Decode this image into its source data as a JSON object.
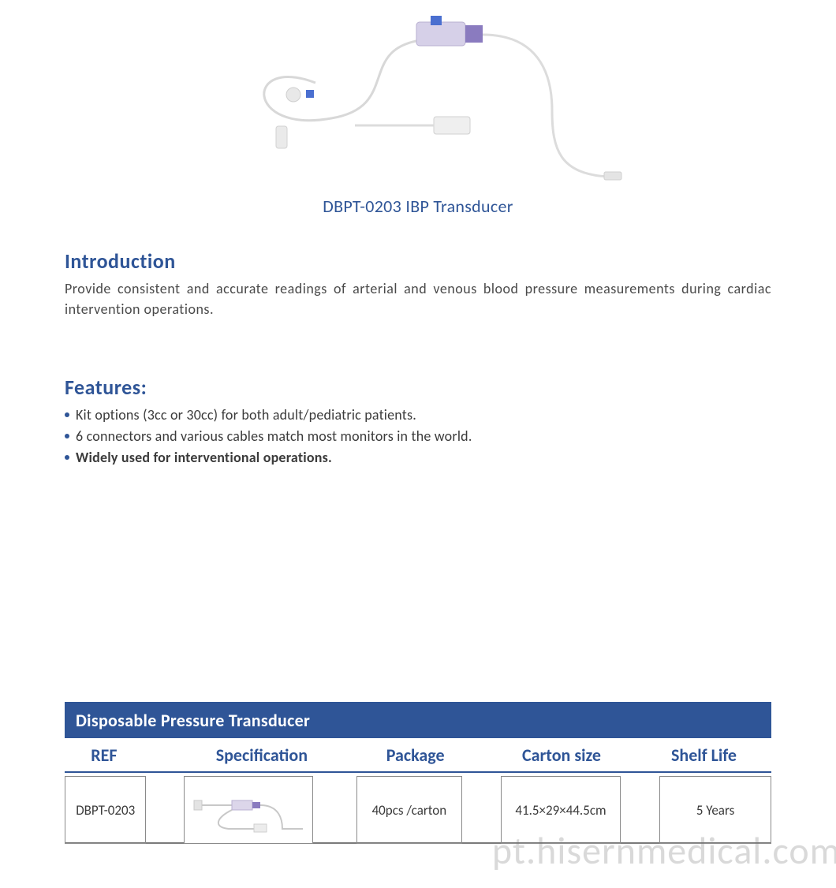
{
  "colors": {
    "brand_blue": "#2f5597",
    "text_dark": "#3b3b3b",
    "text_mid": "#4a4a4a",
    "bullet": "#2f5597",
    "banner_bg": "#2f5597",
    "banner_text": "#ffffff",
    "table_border": "#7a7a7a",
    "cell_border": "#8a8a8a",
    "watermark": "rgba(120,120,120,0.28)"
  },
  "product": {
    "title": "DBPT-0203 IBP Transducer"
  },
  "introduction": {
    "heading": "Introduction",
    "body": "Provide consistent and accurate readings of arterial and venous blood pressure measurements during cardiac intervention operations."
  },
  "features": {
    "heading": "Features:",
    "items": [
      {
        "text": "Kit options (3cc or 30cc) for both adult/pediatric patients.",
        "bold": false
      },
      {
        "text": "6 connectors and various cables match most monitors in the world.",
        "bold": false
      },
      {
        "text": "Widely used for interventional operations.",
        "bold": true
      }
    ]
  },
  "table": {
    "banner": "Disposable Pressure Transducer",
    "headers": {
      "ref": "REF",
      "spec": "Specification",
      "package": "Package",
      "carton": "Carton  size",
      "shelf": "Shelf Life"
    },
    "row": {
      "ref": "DBPT-0203",
      "package": "40pcs /carton",
      "carton": "41.5×29×44.5cm",
      "shelf": "5 Years"
    }
  },
  "watermark": "pt.hisernmedical.com"
}
